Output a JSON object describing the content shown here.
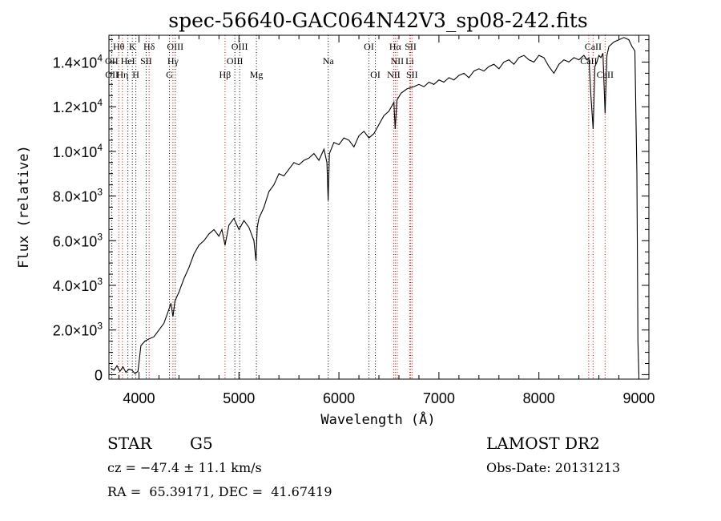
{
  "chart_data": {
    "type": "line",
    "title": "spec-56640-GAC064N42V3_sp08-242.fits",
    "xlabel": "Wavelength (Å)",
    "ylabel": "Flux (relative)",
    "xlim": [
      3700,
      9100
    ],
    "ylim": [
      -200,
      15200
    ],
    "x_ticks": [
      {
        "value": 4000,
        "label": "4000"
      },
      {
        "value": 5000,
        "label": "5000"
      },
      {
        "value": 6000,
        "label": "6000"
      },
      {
        "value": 7000,
        "label": "7000"
      },
      {
        "value": 8000,
        "label": "8000"
      },
      {
        "value": 9000,
        "label": "9000"
      }
    ],
    "y_ticks": [
      {
        "value": 0,
        "mant": "0",
        "exp": ""
      },
      {
        "value": 2000,
        "mant": "2.0×10",
        "exp": "3"
      },
      {
        "value": 4000,
        "mant": "4.0×10",
        "exp": "3"
      },
      {
        "value": 6000,
        "mant": "6.0×10",
        "exp": "3"
      },
      {
        "value": 8000,
        "mant": "8.0×10",
        "exp": "3"
      },
      {
        "value": 10000,
        "mant": "1.0×10",
        "exp": "4"
      },
      {
        "value": 12000,
        "mant": "1.2×10",
        "exp": "4"
      },
      {
        "value": 14000,
        "mant": "1.4×10",
        "exp": "4"
      }
    ],
    "spectrum": {
      "x": [
        3720,
        3750,
        3780,
        3810,
        3840,
        3870,
        3900,
        3930,
        3960,
        3990,
        4020,
        4060,
        4100,
        4150,
        4200,
        4250,
        4290,
        4320,
        4340,
        4360,
        4380,
        4400,
        4450,
        4500,
        4550,
        4600,
        4650,
        4700,
        4750,
        4800,
        4830,
        4861,
        4900,
        4950,
        5000,
        5050,
        5100,
        5150,
        5170,
        5183,
        5200,
        5250,
        5300,
        5350,
        5400,
        5450,
        5500,
        5550,
        5600,
        5650,
        5700,
        5750,
        5800,
        5850,
        5880,
        5892,
        5905,
        5950,
        6000,
        6050,
        6100,
        6150,
        6200,
        6250,
        6300,
        6350,
        6400,
        6450,
        6500,
        6550,
        6563,
        6580,
        6620,
        6680,
        6750,
        6800,
        6850,
        6900,
        6950,
        7000,
        7050,
        7100,
        7150,
        7200,
        7250,
        7300,
        7350,
        7400,
        7450,
        7500,
        7550,
        7600,
        7650,
        7700,
        7750,
        7800,
        7850,
        7900,
        7950,
        8000,
        8050,
        8100,
        8150,
        8200,
        8250,
        8300,
        8350,
        8400,
        8450,
        8480,
        8500,
        8520,
        8542,
        8560,
        8580,
        8600,
        8620,
        8640,
        8662,
        8680,
        8700,
        8750,
        8800,
        8850,
        8900,
        8930,
        8960,
        8980,
        8990,
        9000
      ],
      "y": [
        300,
        200,
        400,
        150,
        350,
        100,
        250,
        200,
        50,
        150,
        1300,
        1500,
        1600,
        1700,
        2000,
        2300,
        2800,
        3200,
        2600,
        3300,
        3500,
        3700,
        4300,
        4800,
        5400,
        5800,
        6000,
        6300,
        6500,
        6200,
        6500,
        5800,
        6700,
        7000,
        6500,
        6900,
        6600,
        6000,
        5100,
        6600,
        7000,
        7500,
        8200,
        8500,
        9000,
        8900,
        9200,
        9500,
        9400,
        9600,
        9700,
        9900,
        9600,
        10100,
        9500,
        7800,
        9900,
        10400,
        10300,
        10600,
        10500,
        10200,
        10700,
        10900,
        10600,
        10800,
        11200,
        11600,
        11800,
        12200,
        11000,
        12300,
        12600,
        12800,
        12900,
        13000,
        12900,
        13100,
        13000,
        13200,
        13100,
        13300,
        13200,
        13400,
        13500,
        13300,
        13600,
        13700,
        13600,
        13800,
        13900,
        13700,
        14000,
        14100,
        13900,
        14200,
        14300,
        14100,
        14000,
        14300,
        14200,
        13800,
        13500,
        13900,
        14100,
        14000,
        14200,
        14100,
        14300,
        14100,
        14200,
        12500,
        11000,
        13800,
        14000,
        14300,
        14200,
        14400,
        11700,
        14300,
        14700,
        14900,
        15000,
        15100,
        15000,
        14700,
        14500,
        9000,
        1500,
        0
      ]
    },
    "lines": [
      {
        "name": "Hθ",
        "x": 3798,
        "color": "#cc0000",
        "row": 0
      },
      {
        "name": "K",
        "x": 3934,
        "color": "#000000",
        "row": 0
      },
      {
        "name": "Hδ",
        "x": 4102,
        "color": "#cc0000",
        "row": 0
      },
      {
        "name": "OIII",
        "x": 4363,
        "color": "#000000",
        "row": 0
      },
      {
        "name": "OIII",
        "x": 5007,
        "color": "#000000",
        "row": 0
      },
      {
        "name": "OI",
        "x": 6300,
        "color": "#000000",
        "row": 0
      },
      {
        "name": "Hα",
        "x": 6563,
        "color": "#cc0000",
        "row": 0
      },
      {
        "name": "SII",
        "x": 6717,
        "color": "#cc0000",
        "row": 0
      },
      {
        "name": "CaII",
        "x": 8542,
        "color": "#cc0000",
        "row": 0
      },
      {
        "name": "OII",
        "x": 3727,
        "color": "#000000",
        "row": 1
      },
      {
        "name": "HeI",
        "x": 3889,
        "color": "#000000",
        "row": 1
      },
      {
        "name": "SII",
        "x": 4072,
        "color": "#000000",
        "row": 1
      },
      {
        "name": "Hγ",
        "x": 4340,
        "color": "#cc0000",
        "row": 1
      },
      {
        "name": "OIII",
        "x": 4959,
        "color": "#000000",
        "row": 1
      },
      {
        "name": "Na",
        "x": 5893,
        "color": "#000000",
        "row": 1
      },
      {
        "name": "NII",
        "x": 6583,
        "color": "#cc0000",
        "row": 1
      },
      {
        "name": "Li",
        "x": 6708,
        "color": "#cc0000",
        "row": 1
      },
      {
        "name": "CaII",
        "x": 8498,
        "color": "#cc0000",
        "row": 1
      },
      {
        "name": "OII",
        "x": 3729,
        "color": "#000000",
        "row": 2
      },
      {
        "name": "Hη",
        "x": 3835,
        "color": "#cc0000",
        "row": 2
      },
      {
        "name": "H",
        "x": 3969,
        "color": "#000000",
        "row": 2
      },
      {
        "name": "G",
        "x": 4305,
        "color": "#000000",
        "row": 2
      },
      {
        "name": "Hβ",
        "x": 4861,
        "color": "#cc0000",
        "row": 2
      },
      {
        "name": "Mg",
        "x": 5175,
        "color": "#000000",
        "row": 2
      },
      {
        "name": "OI",
        "x": 6364,
        "color": "#000000",
        "row": 2
      },
      {
        "name": "NII",
        "x": 6548,
        "color": "#cc0000",
        "row": 2
      },
      {
        "name": "SII",
        "x": 6731,
        "color": "#cc0000",
        "row": 2
      },
      {
        "name": "CaII",
        "x": 8662,
        "color": "#cc0000",
        "row": 2
      }
    ]
  },
  "info": {
    "class": "STAR",
    "subclass": "G5",
    "survey": "LAMOST DR2",
    "cz": "cz = −47.4 ± 11.1 km/s",
    "obs_date": "Obs-Date: 20131213",
    "coords": "RA =  65.39171, DEC =  41.67419"
  }
}
